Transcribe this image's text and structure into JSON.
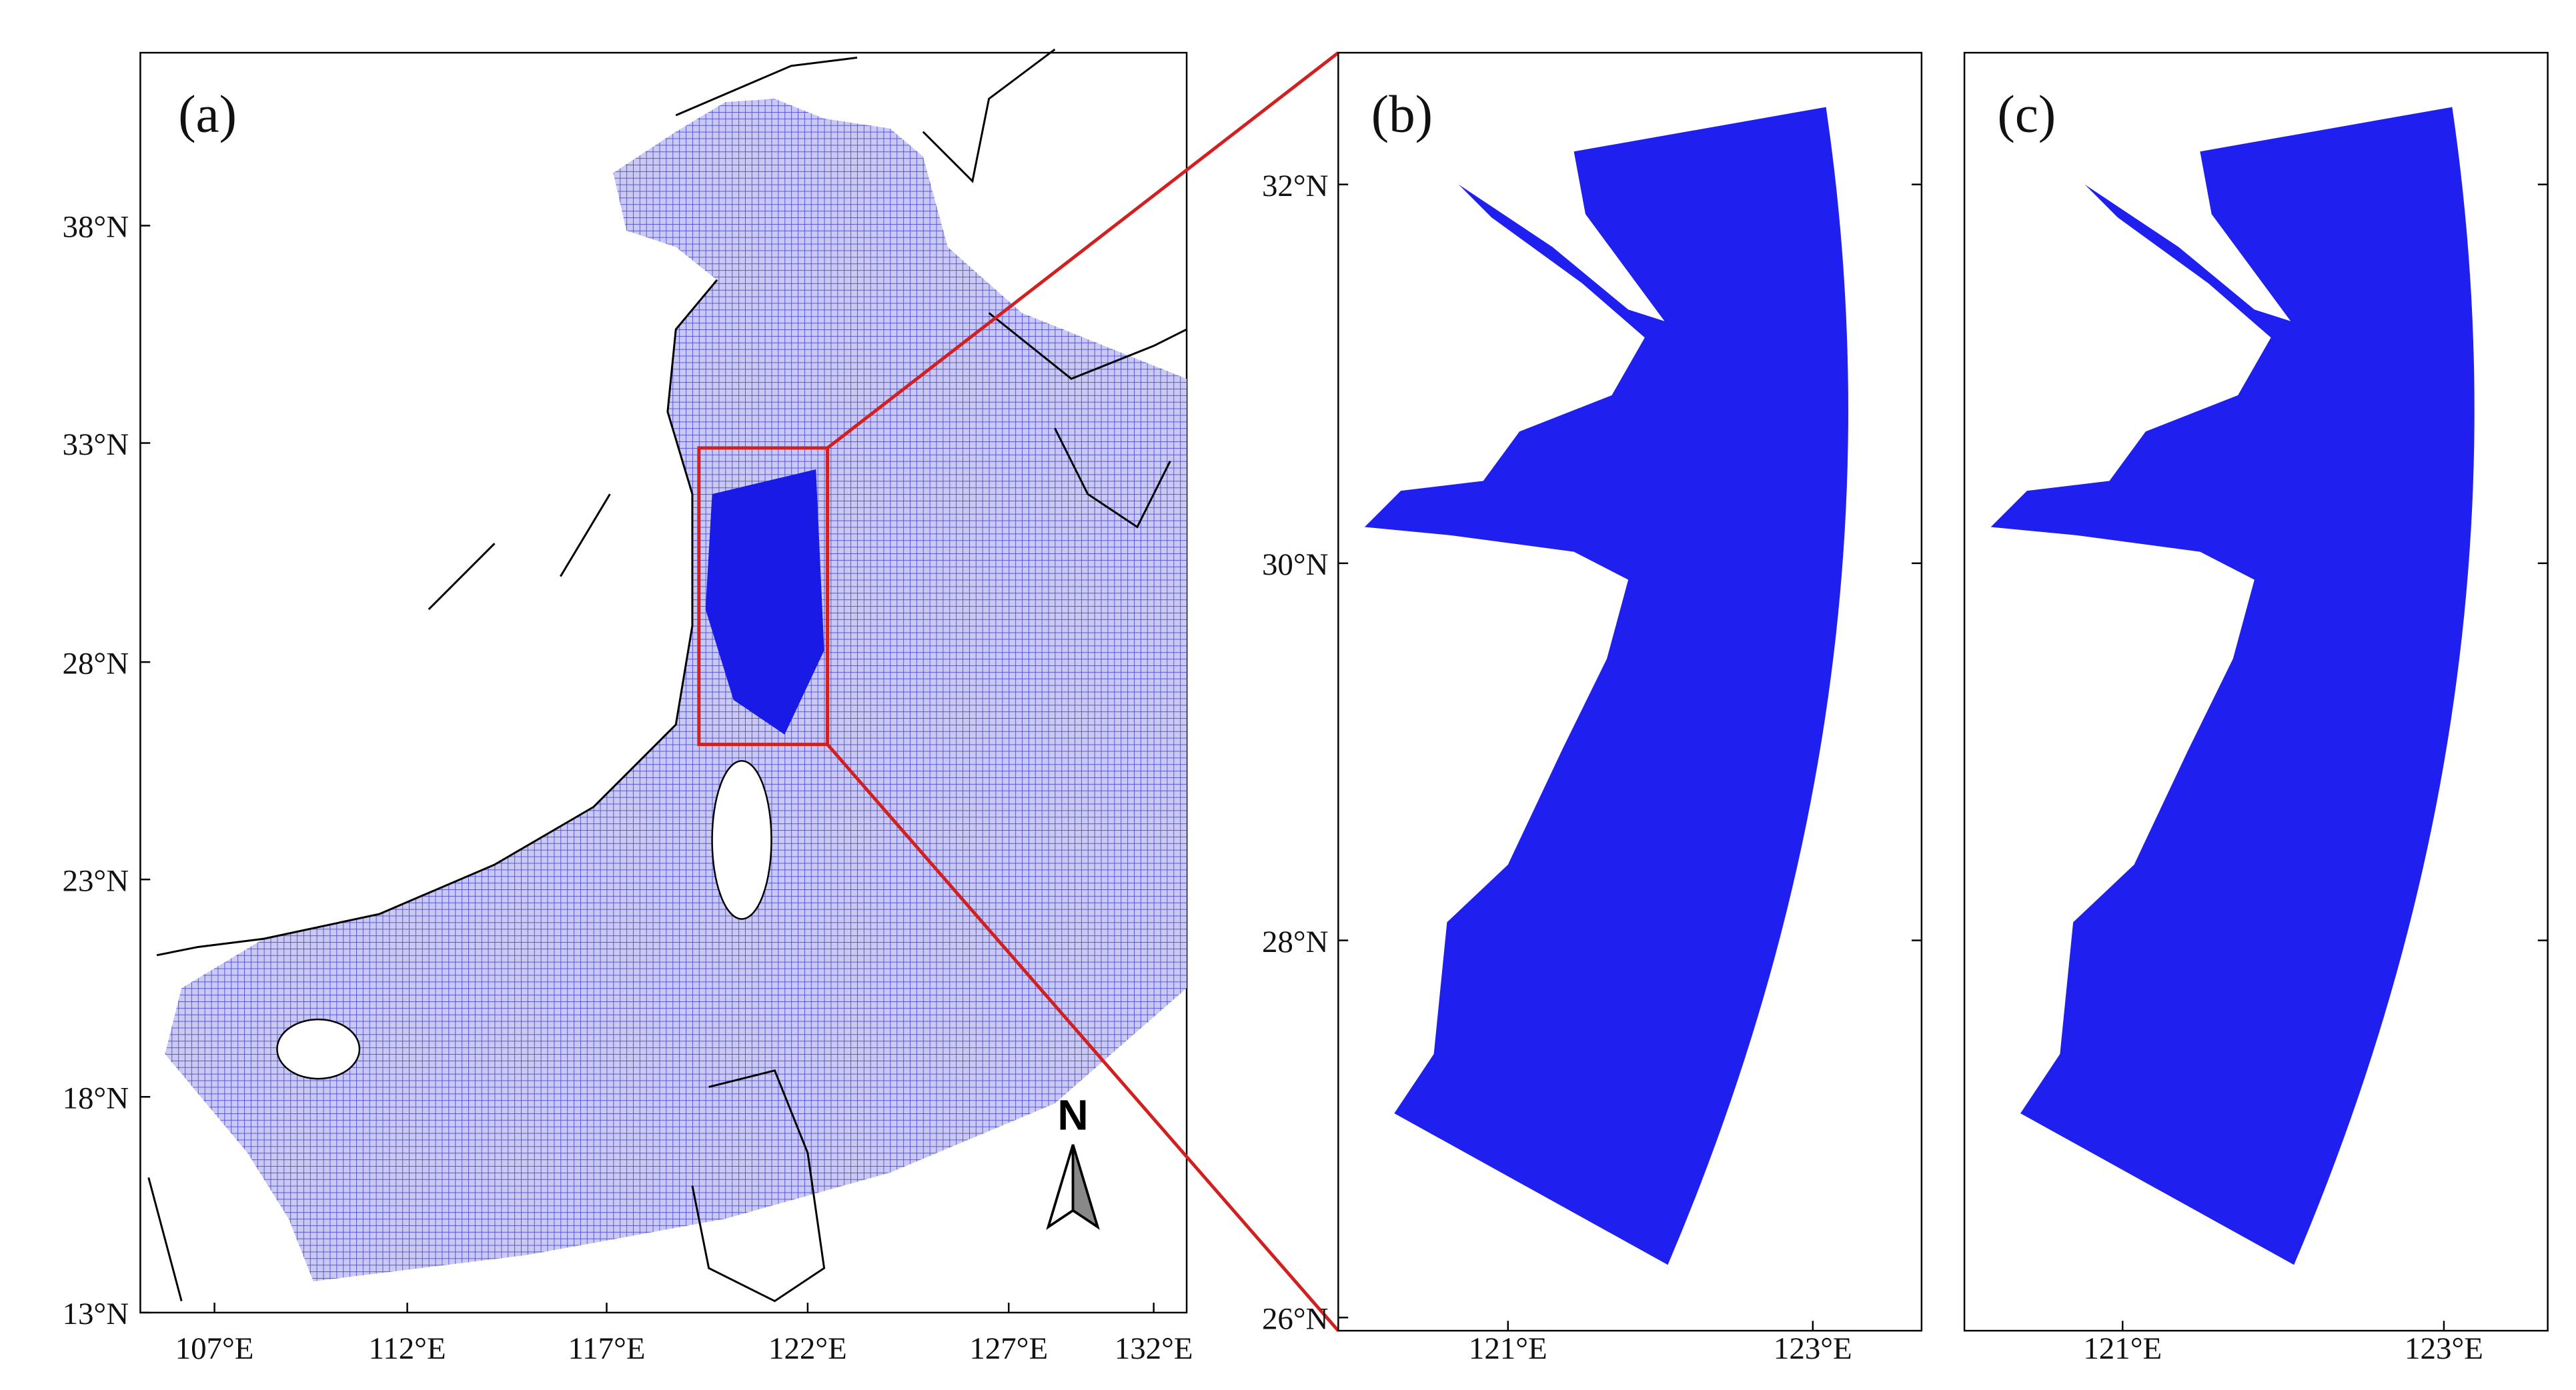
{
  "panels": [
    {
      "label": "(a)",
      "yticks": [
        "38°N",
        "33°N",
        "28°N",
        "23°N",
        "18°N",
        "13°N"
      ],
      "xticks": [
        "107°E",
        "112°E",
        "117°E",
        "122°E",
        "127°E",
        "132°E"
      ]
    },
    {
      "label": "(b)",
      "yticks": [
        "32°N",
        "30°N",
        "28°N",
        "26°N"
      ],
      "xticks": [
        "121°E",
        "123°E"
      ]
    },
    {
      "label": "(c)",
      "yticks": [],
      "xticks": [
        "121°E",
        "123°E"
      ]
    }
  ],
  "north_arrow": "N"
}
